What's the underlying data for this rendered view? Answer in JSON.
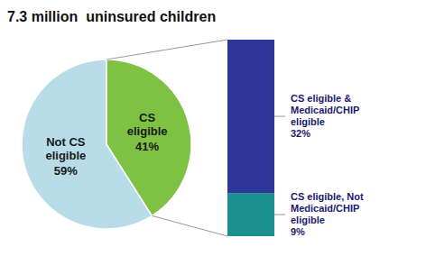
{
  "chart_data": [
    {
      "type": "pie",
      "title": "7.3 million  uninsured children",
      "categories": [
        "Not CS\neligible",
        "CS\neligible"
      ],
      "values": [
        59,
        41
      ],
      "value_labels": [
        "59%",
        "41%"
      ],
      "colors": [
        "#b8dde8",
        "#7dc243"
      ],
      "data_labels": true
    },
    {
      "type": "bar",
      "stacked": true,
      "ylim": [
        0,
        41
      ],
      "tick_labels": false,
      "data_labels": true,
      "series": [
        {
          "name": "CS eligible &\nMedicaid/CHIP\neligible",
          "color": "#2d3799",
          "values": [
            32
          ],
          "value_labels": [
            "32%"
          ]
        },
        {
          "name": "CS eligible, Not\nMedicaid/CHIP\neligible",
          "color": "#1a9090",
          "values": [
            9
          ],
          "value_labels": [
            "9%"
          ]
        }
      ]
    }
  ]
}
